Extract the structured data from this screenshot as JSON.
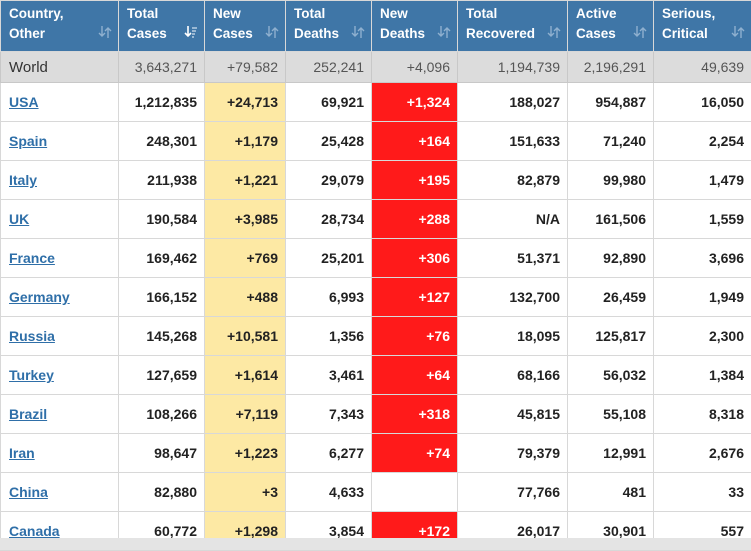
{
  "headers": [
    {
      "key": "country",
      "line1": "Country,",
      "line2": "Other",
      "sort_icon": "sort-arrows-icon"
    },
    {
      "key": "total_cases",
      "line1": "Total",
      "line2": "Cases",
      "sort_icon": "sort-descending-icon"
    },
    {
      "key": "new_cases",
      "line1": "New",
      "line2": "Cases",
      "sort_icon": "sort-arrows-icon"
    },
    {
      "key": "total_deaths",
      "line1": "Total",
      "line2": "Deaths",
      "sort_icon": "sort-arrows-icon"
    },
    {
      "key": "new_deaths",
      "line1": "New",
      "line2": "Deaths",
      "sort_icon": "sort-arrows-icon"
    },
    {
      "key": "total_recovered",
      "line1": "Total",
      "line2": "Recovered",
      "sort_icon": "sort-arrows-icon"
    },
    {
      "key": "active_cases",
      "line1": "Active",
      "line2": "Cases",
      "sort_icon": "sort-arrows-icon"
    },
    {
      "key": "serious_critical",
      "line1": "Serious,",
      "line2": "Critical",
      "sort_icon": "sort-arrows-icon"
    }
  ],
  "world": {
    "name": "World",
    "total_cases": "3,643,271",
    "new_cases": "+79,582",
    "total_deaths": "252,241",
    "new_deaths": "+4,096",
    "total_recovered": "1,194,739",
    "active_cases": "2,196,291",
    "serious_critical": "49,639"
  },
  "rows": [
    {
      "name": "USA",
      "total_cases": "1,212,835",
      "new_cases": "+24,713",
      "total_deaths": "69,921",
      "new_deaths": "+1,324",
      "total_recovered": "188,027",
      "active_cases": "954,887",
      "serious_critical": "16,050"
    },
    {
      "name": "Spain",
      "total_cases": "248,301",
      "new_cases": "+1,179",
      "total_deaths": "25,428",
      "new_deaths": "+164",
      "total_recovered": "151,633",
      "active_cases": "71,240",
      "serious_critical": "2,254"
    },
    {
      "name": "Italy",
      "total_cases": "211,938",
      "new_cases": "+1,221",
      "total_deaths": "29,079",
      "new_deaths": "+195",
      "total_recovered": "82,879",
      "active_cases": "99,980",
      "serious_critical": "1,479"
    },
    {
      "name": "UK",
      "total_cases": "190,584",
      "new_cases": "+3,985",
      "total_deaths": "28,734",
      "new_deaths": "+288",
      "total_recovered": "N/A",
      "active_cases": "161,506",
      "serious_critical": "1,559"
    },
    {
      "name": "France",
      "total_cases": "169,462",
      "new_cases": "+769",
      "total_deaths": "25,201",
      "new_deaths": "+306",
      "total_recovered": "51,371",
      "active_cases": "92,890",
      "serious_critical": "3,696"
    },
    {
      "name": "Germany",
      "total_cases": "166,152",
      "new_cases": "+488",
      "total_deaths": "6,993",
      "new_deaths": "+127",
      "total_recovered": "132,700",
      "active_cases": "26,459",
      "serious_critical": "1,949"
    },
    {
      "name": "Russia",
      "total_cases": "145,268",
      "new_cases": "+10,581",
      "total_deaths": "1,356",
      "new_deaths": "+76",
      "total_recovered": "18,095",
      "active_cases": "125,817",
      "serious_critical": "2,300"
    },
    {
      "name": "Turkey",
      "total_cases": "127,659",
      "new_cases": "+1,614",
      "total_deaths": "3,461",
      "new_deaths": "+64",
      "total_recovered": "68,166",
      "active_cases": "56,032",
      "serious_critical": "1,384"
    },
    {
      "name": "Brazil",
      "total_cases": "108,266",
      "new_cases": "+7,119",
      "total_deaths": "7,343",
      "new_deaths": "+318",
      "total_recovered": "45,815",
      "active_cases": "55,108",
      "serious_critical": "8,318"
    },
    {
      "name": "Iran",
      "total_cases": "98,647",
      "new_cases": "+1,223",
      "total_deaths": "6,277",
      "new_deaths": "+74",
      "total_recovered": "79,379",
      "active_cases": "12,991",
      "serious_critical": "2,676"
    },
    {
      "name": "China",
      "total_cases": "82,880",
      "new_cases": "+3",
      "total_deaths": "4,633",
      "new_deaths": "",
      "total_recovered": "77,766",
      "active_cases": "481",
      "serious_critical": "33"
    },
    {
      "name": "Canada",
      "total_cases": "60,772",
      "new_cases": "+1,298",
      "total_deaths": "3,854",
      "new_deaths": "+172",
      "total_recovered": "26,017",
      "active_cases": "30,901",
      "serious_critical": "557"
    }
  ],
  "colors": {
    "header_bg": "#3f76a7",
    "new_cases_bg": "#fde9a4",
    "new_deaths_bg": "#ff1a1a",
    "world_row_bg": "#dcdcdc",
    "link": "#2f6fa8"
  }
}
